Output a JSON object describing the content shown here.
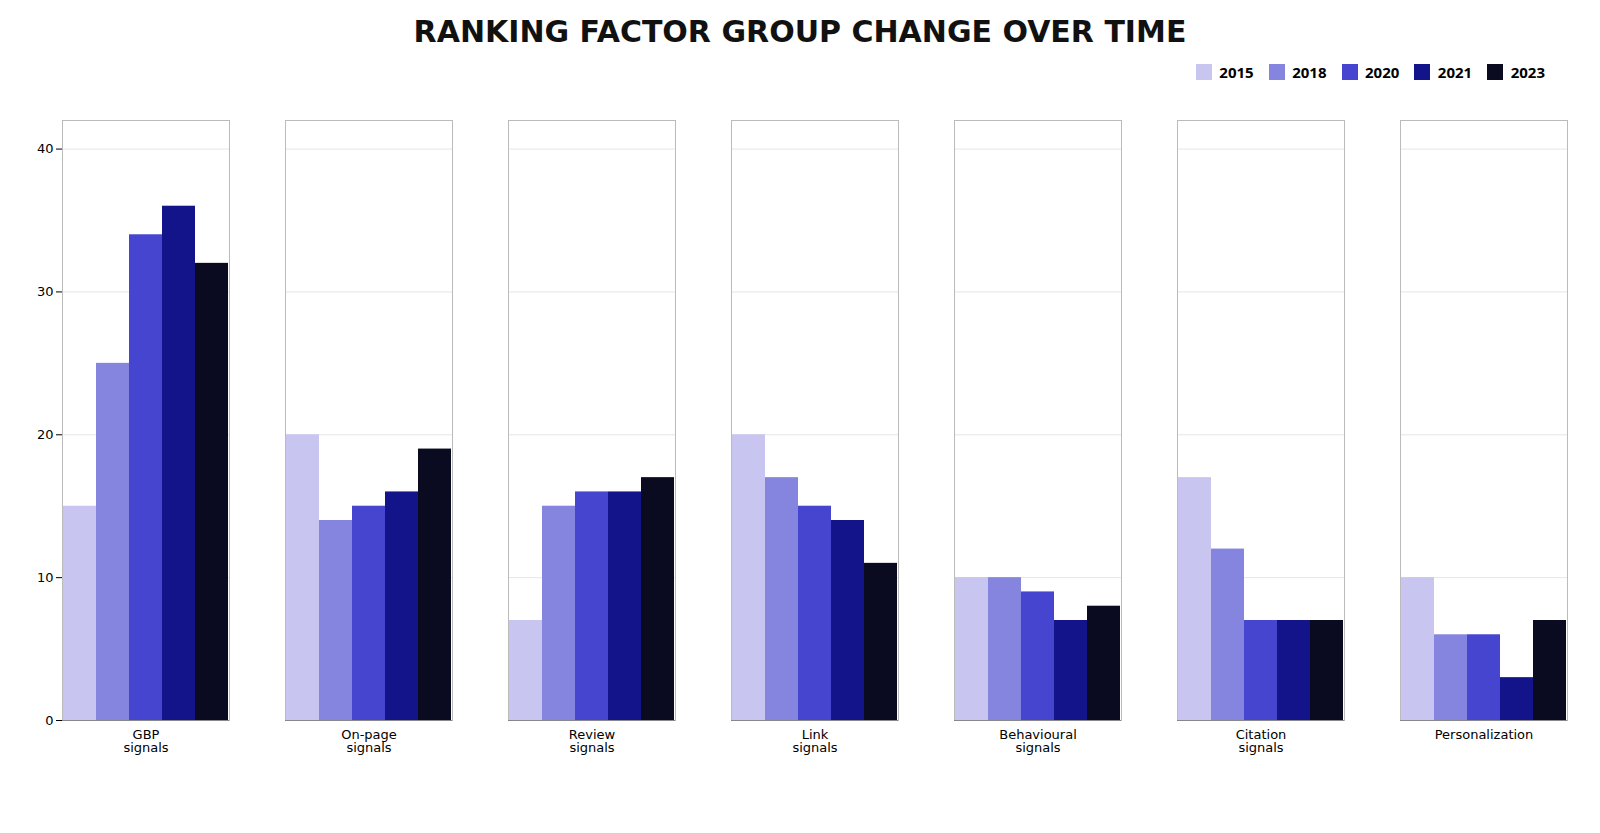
{
  "chart_data": {
    "type": "bar",
    "title": "RANKING FACTOR GROUP CHANGE OVER TIME",
    "categories": [
      "GBP\nsignals",
      "On-page\nsignals",
      "Review\nsignals",
      "Link\nsignals",
      "Behavioural\nsignals",
      "Citation\nsignals",
      "Personalization"
    ],
    "series": [
      {
        "name": "2015",
        "color": "#c8c5f0",
        "values": [
          15,
          20,
          7,
          20,
          10,
          17,
          10
        ]
      },
      {
        "name": "2018",
        "color": "#8585e0",
        "values": [
          25,
          14,
          15,
          17,
          10,
          12,
          6
        ]
      },
      {
        "name": "2020",
        "color": "#4545d0",
        "values": [
          34,
          15,
          16,
          15,
          9,
          7,
          6
        ]
      },
      {
        "name": "2021",
        "color": "#14148a",
        "values": [
          36,
          16,
          16,
          14,
          7,
          7,
          3
        ]
      },
      {
        "name": "2023",
        "color": "#0a0a20",
        "values": [
          32,
          19,
          17,
          11,
          8,
          7,
          7
        ]
      }
    ],
    "ylim": [
      0,
      42
    ],
    "yticks": [
      0,
      10,
      20,
      30,
      40
    ],
    "grid": true,
    "legend": "upper right"
  }
}
